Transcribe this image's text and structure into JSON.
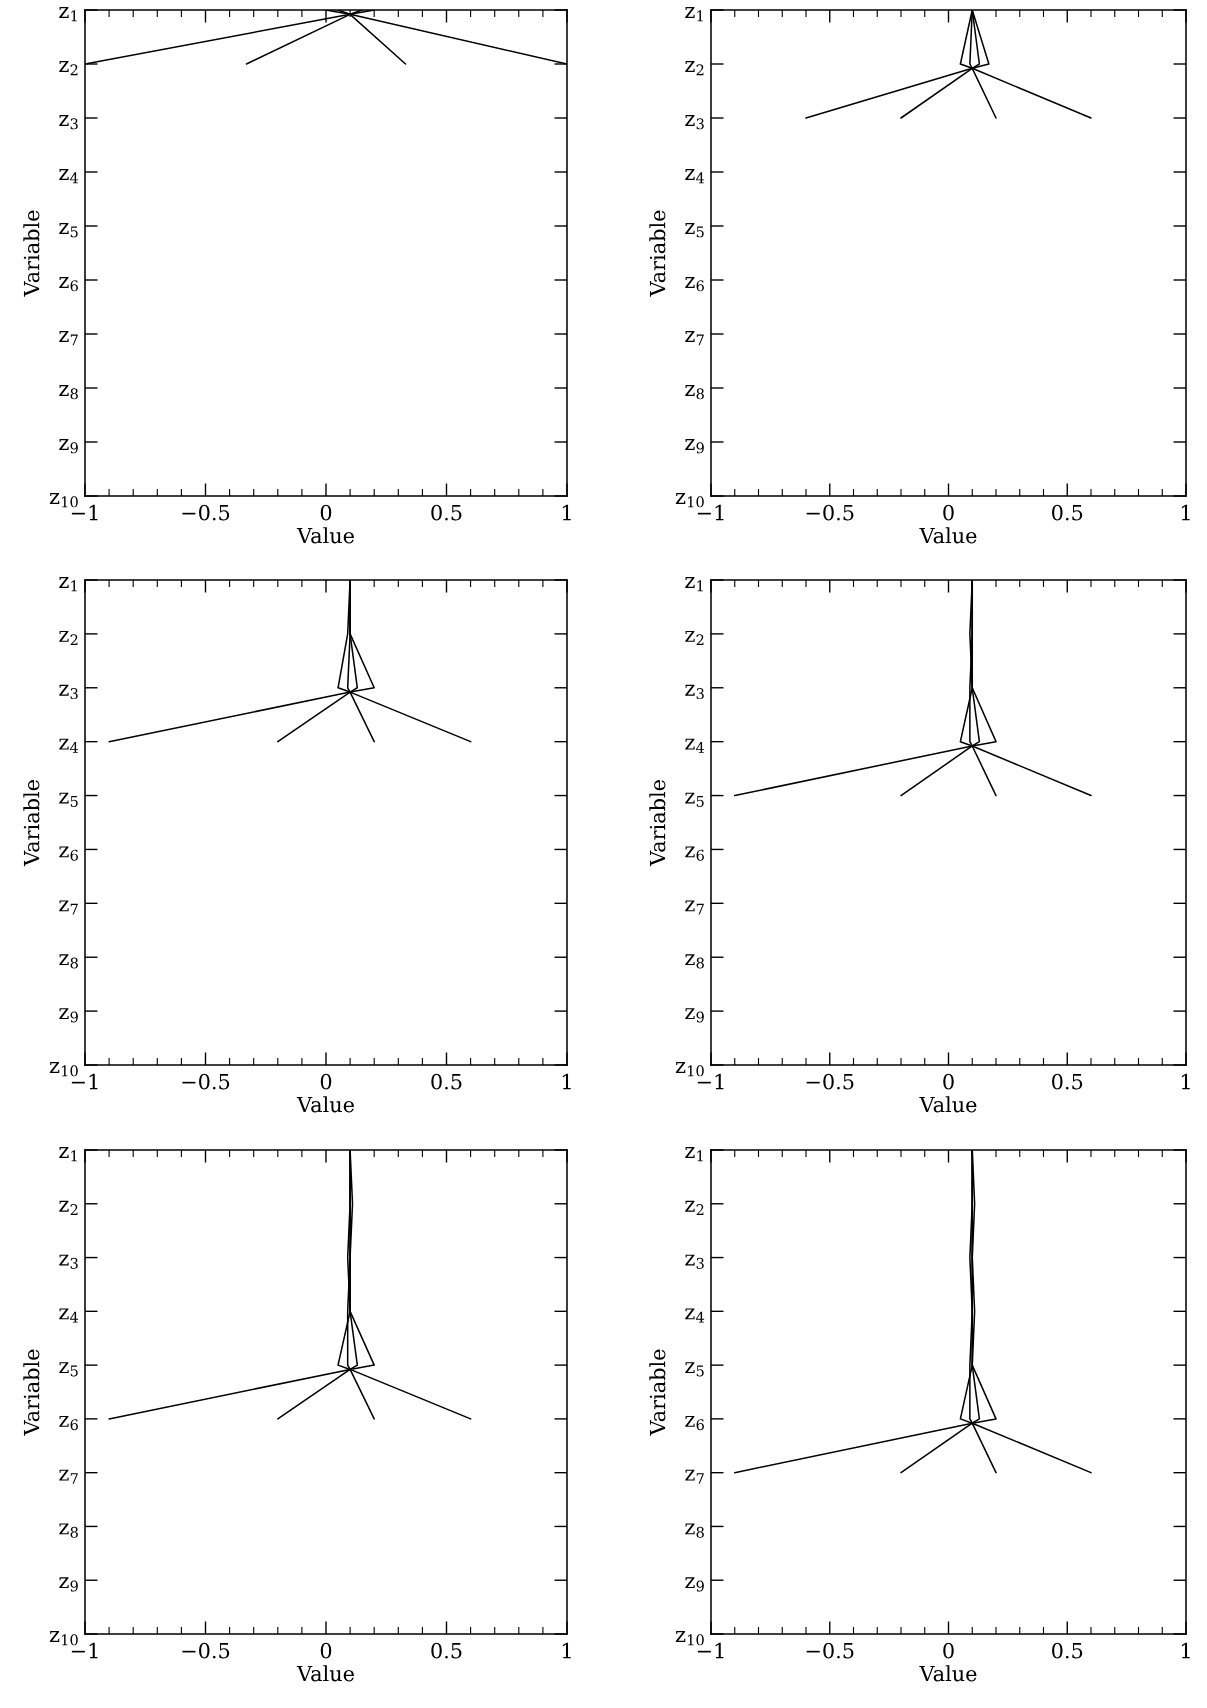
{
  "chart_data": [
    {
      "type": "line",
      "xlabel": "Value",
      "ylabel": "Variable",
      "xlim": [
        -1,
        1
      ],
      "ylim": [
        10,
        1
      ],
      "xticks": [
        {
          "value": -1,
          "label": "−1"
        },
        {
          "value": -0.9,
          "label": null
        },
        {
          "value": -0.8,
          "label": null
        },
        {
          "value": -0.7,
          "label": null
        },
        {
          "value": -0.6,
          "label": null
        },
        {
          "value": -0.5,
          "label": "−0.5"
        },
        {
          "value": -0.4,
          "label": null
        },
        {
          "value": -0.3,
          "label": null
        },
        {
          "value": -0.2,
          "label": null
        },
        {
          "value": -0.1,
          "label": null
        },
        0,
        {
          "value": 0.1,
          "label": null
        },
        {
          "value": 0.2,
          "label": null
        },
        {
          "value": 0.3,
          "label": null
        },
        {
          "value": 0.4,
          "label": null
        },
        0.5,
        {
          "value": 0.6,
          "label": null
        },
        {
          "value": 0.7,
          "label": null
        },
        {
          "value": 0.8,
          "label": null
        },
        {
          "value": 0.9,
          "label": null
        },
        1
      ],
      "yticks": [
        {
          "value": 1,
          "label": "z$_{1}$"
        },
        {
          "value": 2,
          "label": "z$_{2}$"
        },
        {
          "value": 3,
          "label": "z$_{3}$"
        },
        {
          "value": 4,
          "label": "z$_{4}$"
        },
        {
          "value": 5,
          "label": "z$_{5}$"
        },
        {
          "value": 6,
          "label": "z$_{6}$"
        },
        {
          "value": 7,
          "label": "z$_{7}$"
        },
        {
          "value": 8,
          "label": "z$_{8}$"
        },
        {
          "value": 9,
          "label": "z$_{9}$"
        },
        {
          "value": 10,
          "label": "z$_{10}$"
        }
      ],
      "series": [
        {
          "color": "#000000",
          "x": [
            0.0,
            0.1,
            -1
          ],
          "values": [
            1,
            1.08,
            2
          ]
        },
        {
          "color": "#000000",
          "x": [
            0.05,
            0.1,
            -0.33
          ],
          "values": [
            1,
            1.08,
            2
          ]
        },
        {
          "color": "#000000",
          "x": [
            0.15,
            0.1,
            0.33
          ],
          "values": [
            1,
            1.08,
            2
          ]
        },
        {
          "color": "#000000",
          "x": [
            0.2,
            0.1,
            1
          ],
          "values": [
            1,
            1.08,
            2
          ]
        }
      ]
    },
    {
      "type": "line",
      "xlabel": "Value",
      "ylabel": "Variable",
      "xlim": [
        -1,
        1
      ],
      "ylim": [
        10,
        1
      ],
      "xticks": [
        {
          "value": -1,
          "label": "−1"
        },
        {
          "value": -0.9,
          "label": null
        },
        {
          "value": -0.8,
          "label": null
        },
        {
          "value": -0.7,
          "label": null
        },
        {
          "value": -0.6,
          "label": null
        },
        {
          "value": -0.5,
          "label": "−0.5"
        },
        {
          "value": -0.4,
          "label": null
        },
        {
          "value": -0.3,
          "label": null
        },
        {
          "value": -0.2,
          "label": null
        },
        {
          "value": -0.1,
          "label": null
        },
        0,
        {
          "value": 0.1,
          "label": null
        },
        {
          "value": 0.2,
          "label": null
        },
        {
          "value": 0.3,
          "label": null
        },
        {
          "value": 0.4,
          "label": null
        },
        0.5,
        {
          "value": 0.6,
          "label": null
        },
        {
          "value": 0.7,
          "label": null
        },
        {
          "value": 0.8,
          "label": null
        },
        {
          "value": 0.9,
          "label": null
        },
        1
      ],
      "yticks": [
        {
          "value": 1,
          "label": "z$_{1}$"
        },
        {
          "value": 2,
          "label": "z$_{2}$"
        },
        {
          "value": 3,
          "label": "z$_{3}$"
        },
        {
          "value": 4,
          "label": "z$_{4}$"
        },
        {
          "value": 5,
          "label": "z$_{5}$"
        },
        {
          "value": 6,
          "label": "z$_{6}$"
        },
        {
          "value": 7,
          "label": "z$_{7}$"
        },
        {
          "value": 8,
          "label": "z$_{8}$"
        },
        {
          "value": 9,
          "label": "z$_{9}$"
        },
        {
          "value": 10,
          "label": "z$_{10}$"
        }
      ],
      "series": [
        {
          "color": "#000000",
          "x": [
            0.1,
            0.05,
            0.1,
            -0.6
          ],
          "values": [
            1,
            2,
            2.08,
            3
          ]
        },
        {
          "color": "#000000",
          "x": [
            0.1,
            0.09,
            0.1,
            -0.2
          ],
          "values": [
            1,
            2,
            2.08,
            3
          ]
        },
        {
          "color": "#000000",
          "x": [
            0.1,
            0.13,
            0.1,
            0.2
          ],
          "values": [
            1,
            2,
            2.08,
            3
          ]
        },
        {
          "color": "#000000",
          "x": [
            0.1,
            0.17,
            0.1,
            0.6
          ],
          "values": [
            1,
            2,
            2.08,
            3
          ]
        }
      ]
    },
    {
      "type": "line",
      "xlabel": "Value",
      "ylabel": "Variable",
      "xlim": [
        -1,
        1
      ],
      "ylim": [
        10,
        1
      ],
      "xticks": [
        {
          "value": -1,
          "label": "−1"
        },
        {
          "value": -0.9,
          "label": null
        },
        {
          "value": -0.8,
          "label": null
        },
        {
          "value": -0.7,
          "label": null
        },
        {
          "value": -0.6,
          "label": null
        },
        {
          "value": -0.5,
          "label": "−0.5"
        },
        {
          "value": -0.4,
          "label": null
        },
        {
          "value": -0.3,
          "label": null
        },
        {
          "value": -0.2,
          "label": null
        },
        {
          "value": -0.1,
          "label": null
        },
        0,
        {
          "value": 0.1,
          "label": null
        },
        {
          "value": 0.2,
          "label": null
        },
        {
          "value": 0.3,
          "label": null
        },
        {
          "value": 0.4,
          "label": null
        },
        0.5,
        {
          "value": 0.6,
          "label": null
        },
        {
          "value": 0.7,
          "label": null
        },
        {
          "value": 0.8,
          "label": null
        },
        {
          "value": 0.9,
          "label": null
        },
        1
      ],
      "yticks": [
        {
          "value": 1,
          "label": "z$_{1}$"
        },
        {
          "value": 2,
          "label": "z$_{2}$"
        },
        {
          "value": 3,
          "label": "z$_{3}$"
        },
        {
          "value": 4,
          "label": "z$_{4}$"
        },
        {
          "value": 5,
          "label": "z$_{5}$"
        },
        {
          "value": 6,
          "label": "z$_{6}$"
        },
        {
          "value": 7,
          "label": "z$_{7}$"
        },
        {
          "value": 8,
          "label": "z$_{8}$"
        },
        {
          "value": 9,
          "label": "z$_{9}$"
        },
        {
          "value": 10,
          "label": "z$_{10}$"
        }
      ],
      "series": [
        {
          "color": "#000000",
          "x": [
            0.1,
            0.09,
            0.05,
            0.1,
            -0.9
          ],
          "values": [
            1,
            2,
            3,
            3.08,
            4
          ]
        },
        {
          "color": "#000000",
          "x": [
            0.1,
            0.1,
            0.09,
            0.1,
            -0.2
          ],
          "values": [
            1,
            2,
            3,
            3.08,
            4
          ]
        },
        {
          "color": "#000000",
          "x": [
            0.1,
            0.1,
            0.13,
            0.1,
            0.2
          ],
          "values": [
            1,
            2,
            3,
            3.08,
            4
          ]
        },
        {
          "color": "#000000",
          "x": [
            0.1,
            0.1,
            0.2,
            0.1,
            0.6
          ],
          "values": [
            1,
            2,
            3,
            3.08,
            4
          ]
        }
      ]
    },
    {
      "type": "line",
      "xlabel": "Value",
      "ylabel": "Variable",
      "xlim": [
        -1,
        1
      ],
      "ylim": [
        10,
        1
      ],
      "xticks": [
        {
          "value": -1,
          "label": "−1"
        },
        {
          "value": -0.9,
          "label": null
        },
        {
          "value": -0.8,
          "label": null
        },
        {
          "value": -0.7,
          "label": null
        },
        {
          "value": -0.6,
          "label": null
        },
        {
          "value": -0.5,
          "label": "−0.5"
        },
        {
          "value": -0.4,
          "label": null
        },
        {
          "value": -0.3,
          "label": null
        },
        {
          "value": -0.2,
          "label": null
        },
        {
          "value": -0.1,
          "label": null
        },
        0,
        {
          "value": 0.1,
          "label": null
        },
        {
          "value": 0.2,
          "label": null
        },
        {
          "value": 0.3,
          "label": null
        },
        {
          "value": 0.4,
          "label": null
        },
        0.5,
        {
          "value": 0.6,
          "label": null
        },
        {
          "value": 0.7,
          "label": null
        },
        {
          "value": 0.8,
          "label": null
        },
        {
          "value": 0.9,
          "label": null
        },
        1
      ],
      "yticks": [
        {
          "value": 1,
          "label": "z$_{1}$"
        },
        {
          "value": 2,
          "label": "z$_{2}$"
        },
        {
          "value": 3,
          "label": "z$_{3}$"
        },
        {
          "value": 4,
          "label": "z$_{4}$"
        },
        {
          "value": 5,
          "label": "z$_{5}$"
        },
        {
          "value": 6,
          "label": "z$_{6}$"
        },
        {
          "value": 7,
          "label": "z$_{7}$"
        },
        {
          "value": 8,
          "label": "z$_{8}$"
        },
        {
          "value": 9,
          "label": "z$_{9}$"
        },
        {
          "value": 10,
          "label": "z$_{10}$"
        }
      ],
      "series": [
        {
          "color": "#000000",
          "x": [
            0.1,
            0.09,
            0.1,
            0.05,
            0.1,
            -0.9
          ],
          "values": [
            1,
            2,
            3,
            4,
            4.08,
            5
          ]
        },
        {
          "color": "#000000",
          "x": [
            0.1,
            0.1,
            0.09,
            0.09,
            0.1,
            -0.2
          ],
          "values": [
            1,
            2,
            3,
            4,
            4.08,
            5
          ]
        },
        {
          "color": "#000000",
          "x": [
            0.1,
            0.1,
            0.1,
            0.13,
            0.1,
            0.2
          ],
          "values": [
            1,
            2,
            3,
            4,
            4.08,
            5
          ]
        },
        {
          "color": "#000000",
          "x": [
            0.1,
            0.1,
            0.1,
            0.2,
            0.1,
            0.6
          ],
          "values": [
            1,
            2,
            3,
            4,
            4.08,
            5
          ]
        }
      ]
    },
    {
      "type": "line",
      "xlabel": "Value",
      "ylabel": "Variable",
      "xlim": [
        -1,
        1
      ],
      "ylim": [
        10,
        1
      ],
      "xticks": [
        {
          "value": -1,
          "label": "−1"
        },
        {
          "value": -0.9,
          "label": null
        },
        {
          "value": -0.8,
          "label": null
        },
        {
          "value": -0.7,
          "label": null
        },
        {
          "value": -0.6,
          "label": null
        },
        {
          "value": -0.5,
          "label": "−0.5"
        },
        {
          "value": -0.4,
          "label": null
        },
        {
          "value": -0.3,
          "label": null
        },
        {
          "value": -0.2,
          "label": null
        },
        {
          "value": -0.1,
          "label": null
        },
        0,
        {
          "value": 0.1,
          "label": null
        },
        {
          "value": 0.2,
          "label": null
        },
        {
          "value": 0.3,
          "label": null
        },
        {
          "value": 0.4,
          "label": null
        },
        0.5,
        {
          "value": 0.6,
          "label": null
        },
        {
          "value": 0.7,
          "label": null
        },
        {
          "value": 0.8,
          "label": null
        },
        {
          "value": 0.9,
          "label": null
        },
        1
      ],
      "yticks": [
        {
          "value": 1,
          "label": "z$_{1}$"
        },
        {
          "value": 2,
          "label": "z$_{2}$"
        },
        {
          "value": 3,
          "label": "z$_{3}$"
        },
        {
          "value": 4,
          "label": "z$_{4}$"
        },
        {
          "value": 5,
          "label": "z$_{5}$"
        },
        {
          "value": 6,
          "label": "z$_{6}$"
        },
        {
          "value": 7,
          "label": "z$_{7}$"
        },
        {
          "value": 8,
          "label": "z$_{8}$"
        },
        {
          "value": 9,
          "label": "z$_{9}$"
        },
        {
          "value": 10,
          "label": "z$_{10}$"
        }
      ],
      "series": [
        {
          "color": "#000000",
          "x": [
            0.1,
            0.1,
            0.09,
            0.1,
            0.05,
            0.1,
            -0.9
          ],
          "values": [
            1,
            2,
            3,
            4,
            5,
            5.08,
            6
          ]
        },
        {
          "color": "#000000",
          "x": [
            0.1,
            0.1,
            0.1,
            0.09,
            0.09,
            0.1,
            -0.2
          ],
          "values": [
            1,
            2,
            3,
            4,
            5,
            5.08,
            6
          ]
        },
        {
          "color": "#000000",
          "x": [
            0.1,
            0.11,
            0.1,
            0.1,
            0.13,
            0.1,
            0.2
          ],
          "values": [
            1,
            2,
            3,
            4,
            5,
            5.08,
            6
          ]
        },
        {
          "color": "#000000",
          "x": [
            0.1,
            0.1,
            0.1,
            0.1,
            0.2,
            0.1,
            0.6
          ],
          "values": [
            1,
            2,
            3,
            4,
            5,
            5.08,
            6
          ]
        }
      ]
    },
    {
      "type": "line",
      "xlabel": "Value",
      "ylabel": "Variable",
      "xlim": [
        -1,
        1
      ],
      "ylim": [
        10,
        1
      ],
      "xticks": [
        {
          "value": -1,
          "label": "−1"
        },
        {
          "value": -0.9,
          "label": null
        },
        {
          "value": -0.8,
          "label": null
        },
        {
          "value": -0.7,
          "label": null
        },
        {
          "value": -0.6,
          "label": null
        },
        {
          "value": -0.5,
          "label": "−0.5"
        },
        {
          "value": -0.4,
          "label": null
        },
        {
          "value": -0.3,
          "label": null
        },
        {
          "value": -0.2,
          "label": null
        },
        {
          "value": -0.1,
          "label": null
        },
        0,
        {
          "value": 0.1,
          "label": null
        },
        {
          "value": 0.2,
          "label": null
        },
        {
          "value": 0.3,
          "label": null
        },
        {
          "value": 0.4,
          "label": null
        },
        0.5,
        {
          "value": 0.6,
          "label": null
        },
        {
          "value": 0.7,
          "label": null
        },
        {
          "value": 0.8,
          "label": null
        },
        {
          "value": 0.9,
          "label": null
        },
        1
      ],
      "yticks": [
        {
          "value": 1,
          "label": "z$_{1}$"
        },
        {
          "value": 2,
          "label": "z$_{2}$"
        },
        {
          "value": 3,
          "label": "z$_{3}$"
        },
        {
          "value": 4,
          "label": "z$_{4}$"
        },
        {
          "value": 5,
          "label": "z$_{5}$"
        },
        {
          "value": 6,
          "label": "z$_{6}$"
        },
        {
          "value": 7,
          "label": "z$_{7}$"
        },
        {
          "value": 8,
          "label": "z$_{8}$"
        },
        {
          "value": 9,
          "label": "z$_{9}$"
        },
        {
          "value": 10,
          "label": "z$_{10}$"
        }
      ],
      "series": [
        {
          "color": "#000000",
          "x": [
            0.1,
            0.1,
            0.09,
            0.1,
            0.1,
            0.05,
            0.1,
            -0.9
          ],
          "values": [
            1,
            2,
            3,
            4,
            5,
            6,
            6.08,
            7
          ]
        },
        {
          "color": "#000000",
          "x": [
            0.1,
            0.11,
            0.1,
            0.1,
            0.09,
            0.09,
            0.1,
            -0.2
          ],
          "values": [
            1,
            2,
            3,
            4,
            5,
            6,
            6.08,
            7
          ]
        },
        {
          "color": "#000000",
          "x": [
            0.1,
            0.1,
            0.1,
            0.11,
            0.1,
            0.13,
            0.1,
            0.2
          ],
          "values": [
            1,
            2,
            3,
            4,
            5,
            6,
            6.08,
            7
          ]
        },
        {
          "color": "#000000",
          "x": [
            0.1,
            0.1,
            0.1,
            0.1,
            0.1,
            0.2,
            0.1,
            0.6
          ],
          "values": [
            1,
            2,
            3,
            4,
            5,
            6,
            6.08,
            7
          ]
        }
      ]
    }
  ]
}
